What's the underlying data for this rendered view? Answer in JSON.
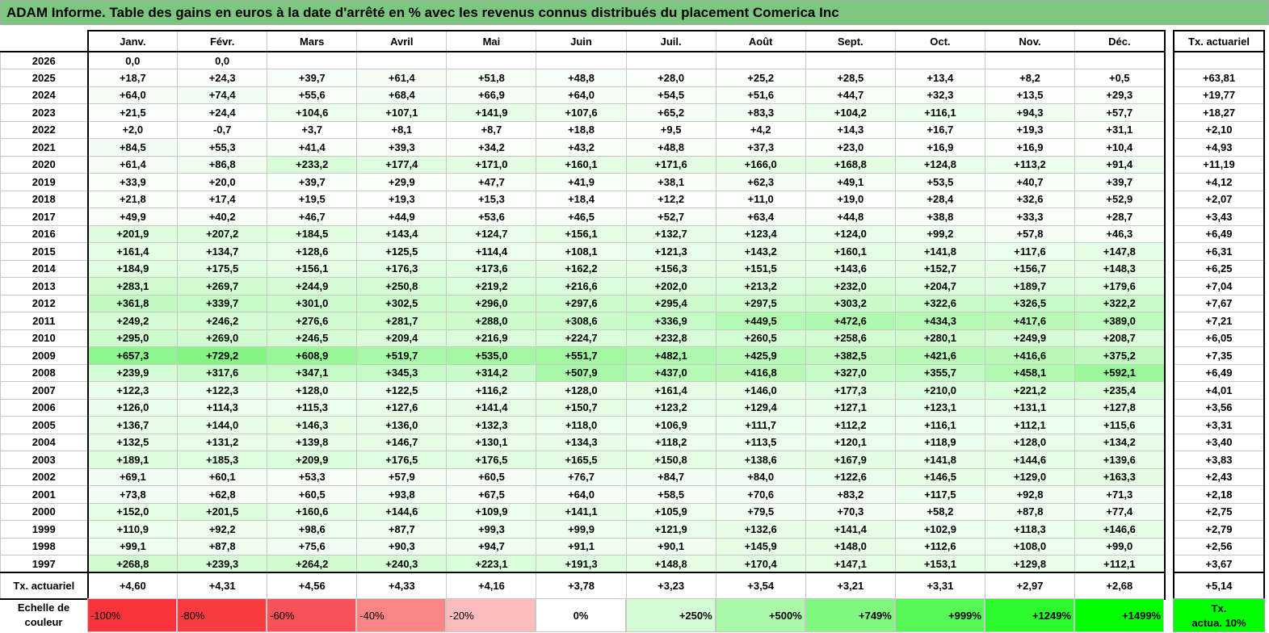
{
  "title": "ADAM Informe. Table des gains en euros à la date d'arrêté en % avec les revenus connus distribués du placement Comerica Inc",
  "months": [
    "Janv.",
    "Févr.",
    "Mars",
    "Avril",
    "Mai",
    "Juin",
    "Juil.",
    "Août",
    "Sept.",
    "Oct.",
    "Nov.",
    "Déc."
  ],
  "side_header": "Tx. actuariel",
  "rows": [
    {
      "year": "2026",
      "values": [
        "0,0",
        "0,0",
        "",
        "",
        "",
        "",
        "",
        "",
        "",
        "",
        "",
        ""
      ],
      "tx": ""
    },
    {
      "year": "2025",
      "values": [
        "+18,7",
        "+24,3",
        "+39,7",
        "+61,4",
        "+51,8",
        "+48,8",
        "+28,0",
        "+25,2",
        "+28,5",
        "+13,4",
        "+8,2",
        "+0,5"
      ],
      "tx": "+63,81"
    },
    {
      "year": "2024",
      "values": [
        "+64,0",
        "+74,4",
        "+55,6",
        "+68,4",
        "+66,9",
        "+64,0",
        "+54,5",
        "+51,6",
        "+44,7",
        "+32,3",
        "+13,5",
        "+29,3"
      ],
      "tx": "+19,77"
    },
    {
      "year": "2023",
      "values": [
        "+21,5",
        "+24,4",
        "+104,6",
        "+107,1",
        "+141,9",
        "+107,6",
        "+65,2",
        "+83,3",
        "+104,2",
        "+116,1",
        "+94,3",
        "+57,7"
      ],
      "tx": "+18,27"
    },
    {
      "year": "2022",
      "values": [
        "+2,0",
        "-0,7",
        "+3,7",
        "+8,1",
        "+8,7",
        "+18,8",
        "+9,5",
        "+4,2",
        "+14,3",
        "+16,7",
        "+19,3",
        "+31,1"
      ],
      "tx": "+2,10"
    },
    {
      "year": "2021",
      "values": [
        "+84,5",
        "+55,3",
        "+41,4",
        "+39,3",
        "+34,2",
        "+43,2",
        "+48,8",
        "+37,3",
        "+23,0",
        "+16,9",
        "+16,9",
        "+10,4"
      ],
      "tx": "+4,93"
    },
    {
      "year": "2020",
      "values": [
        "+61,4",
        "+86,8",
        "+233,2",
        "+177,4",
        "+171,0",
        "+160,1",
        "+171,6",
        "+166,0",
        "+168,8",
        "+124,8",
        "+113,2",
        "+91,4"
      ],
      "tx": "+11,19"
    },
    {
      "year": "2019",
      "values": [
        "+33,9",
        "+20,0",
        "+39,7",
        "+29,9",
        "+47,7",
        "+41,9",
        "+38,1",
        "+62,3",
        "+49,1",
        "+53,5",
        "+40,7",
        "+39,7"
      ],
      "tx": "+4,12"
    },
    {
      "year": "2018",
      "values": [
        "+21,8",
        "+17,4",
        "+19,5",
        "+19,3",
        "+15,3",
        "+18,4",
        "+12,2",
        "+11,0",
        "+19,0",
        "+28,4",
        "+32,6",
        "+52,9"
      ],
      "tx": "+2,07"
    },
    {
      "year": "2017",
      "values": [
        "+49,9",
        "+40,2",
        "+46,7",
        "+44,9",
        "+53,6",
        "+46,5",
        "+52,7",
        "+63,4",
        "+44,8",
        "+38,8",
        "+33,3",
        "+28,7"
      ],
      "tx": "+3,43"
    },
    {
      "year": "2016",
      "values": [
        "+201,9",
        "+207,2",
        "+184,5",
        "+143,4",
        "+124,7",
        "+156,1",
        "+132,7",
        "+123,4",
        "+124,0",
        "+99,2",
        "+57,8",
        "+46,3"
      ],
      "tx": "+6,49"
    },
    {
      "year": "2015",
      "values": [
        "+161,4",
        "+134,7",
        "+128,6",
        "+125,5",
        "+114,4",
        "+108,1",
        "+121,3",
        "+143,2",
        "+160,1",
        "+141,8",
        "+117,6",
        "+147,8"
      ],
      "tx": "+6,31"
    },
    {
      "year": "2014",
      "values": [
        "+184,9",
        "+175,5",
        "+156,1",
        "+176,3",
        "+173,6",
        "+162,2",
        "+156,3",
        "+151,5",
        "+143,6",
        "+152,7",
        "+156,7",
        "+148,3"
      ],
      "tx": "+6,25"
    },
    {
      "year": "2013",
      "values": [
        "+283,1",
        "+269,7",
        "+244,9",
        "+250,8",
        "+219,2",
        "+216,6",
        "+202,0",
        "+213,2",
        "+232,0",
        "+204,7",
        "+189,7",
        "+179,6"
      ],
      "tx": "+7,04"
    },
    {
      "year": "2012",
      "values": [
        "+361,8",
        "+339,7",
        "+301,0",
        "+302,5",
        "+296,0",
        "+297,6",
        "+295,4",
        "+297,5",
        "+303,2",
        "+322,6",
        "+326,5",
        "+322,2"
      ],
      "tx": "+7,67"
    },
    {
      "year": "2011",
      "values": [
        "+249,2",
        "+246,2",
        "+276,6",
        "+281,7",
        "+288,0",
        "+308,6",
        "+336,9",
        "+449,5",
        "+472,6",
        "+434,3",
        "+417,6",
        "+389,0"
      ],
      "tx": "+7,21"
    },
    {
      "year": "2010",
      "values": [
        "+295,0",
        "+269,0",
        "+246,5",
        "+209,4",
        "+216,9",
        "+224,7",
        "+232,8",
        "+260,5",
        "+258,6",
        "+280,1",
        "+249,9",
        "+208,7"
      ],
      "tx": "+6,05"
    },
    {
      "year": "2009",
      "values": [
        "+657,3",
        "+729,2",
        "+608,9",
        "+519,7",
        "+535,0",
        "+551,7",
        "+482,1",
        "+425,9",
        "+382,5",
        "+421,6",
        "+416,6",
        "+375,2"
      ],
      "tx": "+7,35"
    },
    {
      "year": "2008",
      "values": [
        "+239,9",
        "+317,6",
        "+347,1",
        "+345,3",
        "+314,2",
        "+507,9",
        "+437,0",
        "+416,8",
        "+327,0",
        "+355,7",
        "+458,1",
        "+592,1"
      ],
      "tx": "+6,49"
    },
    {
      "year": "2007",
      "values": [
        "+122,3",
        "+122,3",
        "+128,0",
        "+122,5",
        "+116,2",
        "+128,0",
        "+161,4",
        "+146,0",
        "+177,3",
        "+210,0",
        "+221,2",
        "+235,4"
      ],
      "tx": "+4,01"
    },
    {
      "year": "2006",
      "values": [
        "+126,0",
        "+114,3",
        "+115,3",
        "+127,6",
        "+141,4",
        "+150,7",
        "+123,2",
        "+129,4",
        "+127,1",
        "+123,1",
        "+131,1",
        "+127,8"
      ],
      "tx": "+3,56"
    },
    {
      "year": "2005",
      "values": [
        "+136,7",
        "+144,0",
        "+146,3",
        "+136,0",
        "+132,3",
        "+118,0",
        "+106,9",
        "+111,7",
        "+112,2",
        "+116,1",
        "+112,1",
        "+115,6"
      ],
      "tx": "+3,31"
    },
    {
      "year": "2004",
      "values": [
        "+132,5",
        "+131,2",
        "+139,8",
        "+146,7",
        "+130,1",
        "+134,3",
        "+118,2",
        "+113,5",
        "+120,1",
        "+118,9",
        "+128,0",
        "+134,2"
      ],
      "tx": "+3,40"
    },
    {
      "year": "2003",
      "values": [
        "+189,1",
        "+185,3",
        "+209,9",
        "+176,5",
        "+176,5",
        "+165,5",
        "+150,8",
        "+138,6",
        "+167,9",
        "+141,8",
        "+144,6",
        "+139,6"
      ],
      "tx": "+3,83"
    },
    {
      "year": "2002",
      "values": [
        "+69,1",
        "+60,1",
        "+53,3",
        "+57,9",
        "+60,5",
        "+76,7",
        "+84,7",
        "+84,0",
        "+122,6",
        "+146,5",
        "+129,0",
        "+163,3"
      ],
      "tx": "+2,43"
    },
    {
      "year": "2001",
      "values": [
        "+73,8",
        "+62,8",
        "+60,5",
        "+93,8",
        "+67,5",
        "+64,0",
        "+58,5",
        "+70,6",
        "+83,2",
        "+117,5",
        "+92,8",
        "+71,3"
      ],
      "tx": "+2,18"
    },
    {
      "year": "2000",
      "values": [
        "+152,0",
        "+201,5",
        "+160,6",
        "+144,6",
        "+109,9",
        "+141,1",
        "+105,9",
        "+79,5",
        "+70,3",
        "+58,2",
        "+87,8",
        "+77,4"
      ],
      "tx": "+2,75"
    },
    {
      "year": "1999",
      "values": [
        "+110,9",
        "+92,2",
        "+98,6",
        "+87,7",
        "+99,3",
        "+99,9",
        "+121,9",
        "+132,6",
        "+141,4",
        "+102,9",
        "+118,3",
        "+146,6"
      ],
      "tx": "+2,79"
    },
    {
      "year": "1998",
      "values": [
        "+99,1",
        "+87,8",
        "+75,6",
        "+90,3",
        "+94,7",
        "+91,1",
        "+90,1",
        "+145,9",
        "+148,0",
        "+112,6",
        "+108,0",
        "+99,0"
      ],
      "tx": "+2,56"
    },
    {
      "year": "1997",
      "values": [
        "+268,8",
        "+239,3",
        "+264,2",
        "+240,3",
        "+223,1",
        "+191,3",
        "+148,8",
        "+170,4",
        "+147,1",
        "+153,1",
        "+129,8",
        "+112,1"
      ],
      "tx": "+3,67"
    }
  ],
  "total": {
    "label": "Tx. actuariel",
    "values": [
      "+4,60",
      "+4,31",
      "+4,56",
      "+4,33",
      "+4,16",
      "+3,78",
      "+3,23",
      "+3,54",
      "+3,21",
      "+3,31",
      "+2,97",
      "+2,68"
    ],
    "tx": "+5,14"
  },
  "legend": {
    "label_line1": "Echelle de",
    "label_line2": "couleur",
    "steps": [
      {
        "label": "-100%",
        "color": "#f7343b"
      },
      {
        "label": "-80%",
        "color": "#f73c41"
      },
      {
        "label": "-60%",
        "color": "#f85258"
      },
      {
        "label": "-40%",
        "color": "#fa8585"
      },
      {
        "label": "-20%",
        "color": "#fcbcbc"
      },
      {
        "label": "0%",
        "color": "#ffffff"
      },
      {
        "label": "+250%",
        "color": "#d4fcd4"
      },
      {
        "label": "+500%",
        "color": "#aaf9aa"
      },
      {
        "label": "+749%",
        "color": "#80f880"
      },
      {
        "label": "+999%",
        "color": "#55f855"
      },
      {
        "label": "+1249%",
        "color": "#2bfb2b"
      },
      {
        "label": "+1499%",
        "color": "#00ff00"
      }
    ],
    "tx_line1": "Tx.",
    "tx_line2": "actua. 10%",
    "tx_color": "#00ff00"
  }
}
